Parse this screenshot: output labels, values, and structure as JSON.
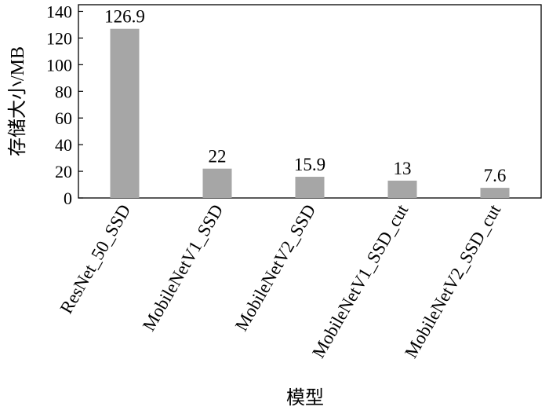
{
  "chart_data": {
    "type": "bar",
    "title": "",
    "xlabel": "模型",
    "ylabel": "存储大小/MB",
    "categories": [
      "ResNet_50_SSD",
      "MobileNetV1_SSD",
      "MobileNetV2_SSD",
      "MobileNetV1_SSD_cut",
      "MobileNetV2_SSD_cut"
    ],
    "values": [
      126.9,
      22,
      15.9,
      13,
      7.6
    ],
    "data_labels": [
      "126.9",
      "22",
      "15.9",
      "13",
      "7.6"
    ],
    "yticks": [
      0,
      20,
      40,
      60,
      80,
      100,
      120,
      140
    ],
    "ylim": [
      0,
      145
    ],
    "grid": false,
    "legend": "none",
    "bar_color": "#a6a6a6"
  }
}
